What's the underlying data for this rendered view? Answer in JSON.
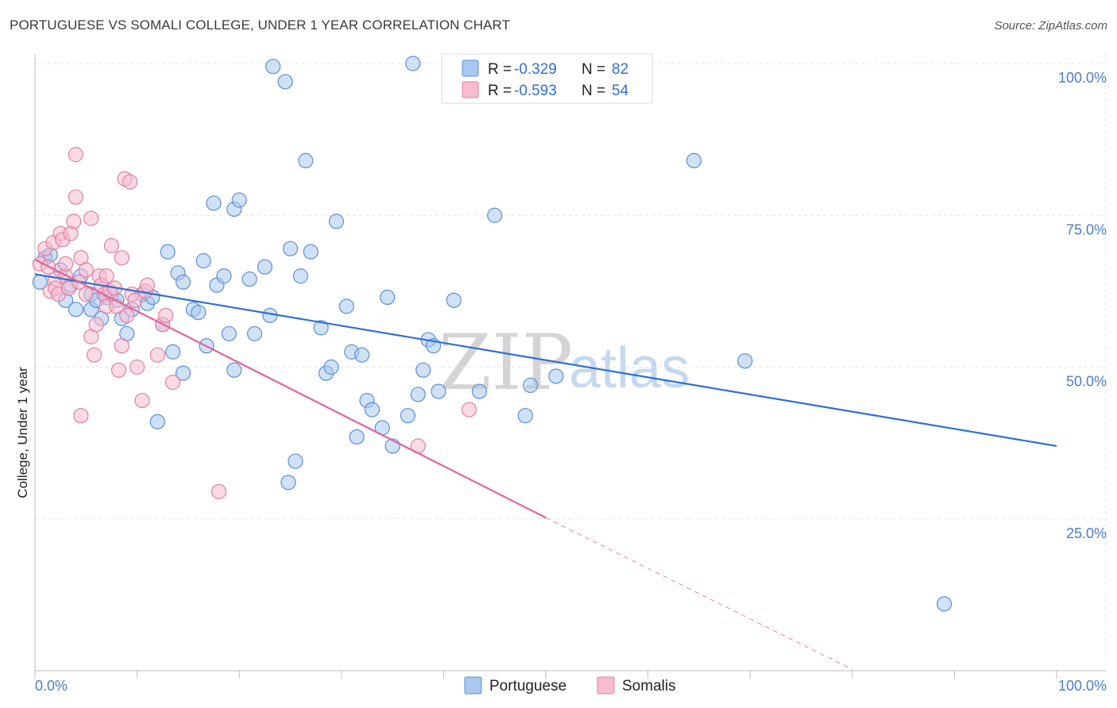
{
  "header": {
    "title": "PORTUGUESE VS SOMALI COLLEGE, UNDER 1 YEAR CORRELATION CHART",
    "source": "Source: ZipAtlas.com"
  },
  "watermark": {
    "zip": "ZIP",
    "atlas": "atlas"
  },
  "legend_stats": [
    {
      "r_label": "R =",
      "r_value": "-0.329",
      "n_label": "N =",
      "n_value": "82",
      "color": "#a9c8ef",
      "stroke": "#5b8fd6"
    },
    {
      "r_label": "R =",
      "r_value": "-0.593",
      "n_label": "N =",
      "n_value": "54",
      "color": "#f6bcd0",
      "stroke": "#e07fa0"
    }
  ],
  "chart_data": {
    "type": "scatter",
    "title": "PORTUGUESE VS SOMALI COLLEGE, UNDER 1 YEAR CORRELATION CHART",
    "xlabel": "",
    "ylabel": "College, Under 1 year",
    "xlim": [
      0,
      100
    ],
    "ylim": [
      0,
      100
    ],
    "x_tick_labels": [
      "0.0%",
      "100.0%"
    ],
    "y_ticks": [
      25,
      50,
      75,
      100
    ],
    "y_tick_labels": [
      "25.0%",
      "50.0%",
      "75.0%",
      "100.0%"
    ],
    "grid": true,
    "legend": [
      "Portuguese",
      "Somalis"
    ],
    "series": [
      {
        "name": "Portuguese",
        "color": "#a9c8ef",
        "stroke": "#5b8fd6",
        "line_color": "#2f6fd0",
        "trend": {
          "x0": 0,
          "y0": 65.3,
          "x1": 100,
          "y1": 37.0
        },
        "points": [
          [
            0.5,
            64.0
          ],
          [
            1.0,
            68.0
          ],
          [
            1.5,
            68.5
          ],
          [
            2.5,
            66.0
          ],
          [
            3.0,
            61.0
          ],
          [
            3.5,
            63.5
          ],
          [
            4.0,
            59.5
          ],
          [
            4.5,
            65.0
          ],
          [
            5.5,
            59.5
          ],
          [
            5.5,
            62.0
          ],
          [
            6.0,
            61.0
          ],
          [
            6.5,
            58.0
          ],
          [
            7.0,
            61.5
          ],
          [
            7.5,
            62.0
          ],
          [
            8.0,
            61.0
          ],
          [
            8.5,
            58.0
          ],
          [
            9.0,
            55.5
          ],
          [
            9.5,
            59.5
          ],
          [
            10.5,
            62.0
          ],
          [
            11.0,
            60.5
          ],
          [
            11.5,
            61.5
          ],
          [
            12.0,
            41.0
          ],
          [
            12.5,
            57.0
          ],
          [
            13.0,
            69.0
          ],
          [
            13.5,
            52.5
          ],
          [
            14.0,
            65.5
          ],
          [
            14.5,
            64.0
          ],
          [
            14.5,
            49.0
          ],
          [
            15.5,
            59.5
          ],
          [
            16.0,
            59.0
          ],
          [
            16.5,
            67.5
          ],
          [
            16.8,
            53.5
          ],
          [
            17.5,
            77.0
          ],
          [
            17.8,
            63.5
          ],
          [
            18.5,
            65.0
          ],
          [
            19.0,
            55.5
          ],
          [
            19.5,
            49.5
          ],
          [
            19.5,
            76.0
          ],
          [
            20.0,
            77.5
          ],
          [
            21.0,
            64.5
          ],
          [
            21.5,
            55.5
          ],
          [
            22.5,
            66.5
          ],
          [
            23.0,
            58.5
          ],
          [
            23.3,
            99.5
          ],
          [
            24.5,
            97.0
          ],
          [
            24.8,
            31.0
          ],
          [
            25.0,
            69.5
          ],
          [
            25.5,
            34.5
          ],
          [
            26.0,
            65.0
          ],
          [
            26.5,
            84.0
          ],
          [
            27.0,
            69.0
          ],
          [
            28.0,
            56.5
          ],
          [
            28.5,
            49.0
          ],
          [
            29.0,
            50.0
          ],
          [
            29.5,
            74.0
          ],
          [
            30.5,
            60.0
          ],
          [
            31.0,
            52.5
          ],
          [
            31.5,
            38.5
          ],
          [
            32.0,
            52.0
          ],
          [
            32.5,
            44.5
          ],
          [
            33.0,
            43.0
          ],
          [
            34.0,
            40.0
          ],
          [
            34.5,
            61.5
          ],
          [
            35.0,
            37.0
          ],
          [
            36.5,
            42.0
          ],
          [
            37.0,
            100.0
          ],
          [
            37.5,
            45.5
          ],
          [
            38.0,
            49.5
          ],
          [
            38.5,
            54.5
          ],
          [
            39.0,
            53.5
          ],
          [
            39.5,
            46.0
          ],
          [
            41.0,
            61.0
          ],
          [
            43.5,
            46.0
          ],
          [
            45.0,
            75.0
          ],
          [
            48.0,
            42.0
          ],
          [
            48.5,
            47.0
          ],
          [
            51.0,
            48.5
          ],
          [
            64.5,
            84.0
          ],
          [
            69.5,
            51.0
          ],
          [
            89.0,
            11.0
          ]
        ]
      },
      {
        "name": "Somalis",
        "color": "#f6bcd0",
        "stroke": "#e07fa0",
        "line_color": "#e0659a",
        "trend": {
          "x0": 0,
          "y0": 67.7,
          "x1": 50,
          "y1": 25.2
        },
        "trend_dashed": {
          "x0": 50,
          "y0": 25.2,
          "x1": 80,
          "y1": 0.2
        },
        "points": [
          [
            0.5,
            67.0
          ],
          [
            1.0,
            69.5
          ],
          [
            1.3,
            66.5
          ],
          [
            1.5,
            62.5
          ],
          [
            1.8,
            70.5
          ],
          [
            2.0,
            64.5
          ],
          [
            2.0,
            63.0
          ],
          [
            2.3,
            62.0
          ],
          [
            2.5,
            72.0
          ],
          [
            2.7,
            71.0
          ],
          [
            3.0,
            65.0
          ],
          [
            3.0,
            67.0
          ],
          [
            3.3,
            63.0
          ],
          [
            3.5,
            72.0
          ],
          [
            3.8,
            74.0
          ],
          [
            4.0,
            85.0
          ],
          [
            4.0,
            78.0
          ],
          [
            4.3,
            64.0
          ],
          [
            4.5,
            68.0
          ],
          [
            4.5,
            42.0
          ],
          [
            5.0,
            66.0
          ],
          [
            5.0,
            62.0
          ],
          [
            5.5,
            74.5
          ],
          [
            5.5,
            55.0
          ],
          [
            5.8,
            52.0
          ],
          [
            6.0,
            57.0
          ],
          [
            6.3,
            65.0
          ],
          [
            6.5,
            63.5
          ],
          [
            6.8,
            62.0
          ],
          [
            7.0,
            65.0
          ],
          [
            7.0,
            60.0
          ],
          [
            7.3,
            62.5
          ],
          [
            7.5,
            70.0
          ],
          [
            7.8,
            63.0
          ],
          [
            8.0,
            60.0
          ],
          [
            8.2,
            49.5
          ],
          [
            8.5,
            68.0
          ],
          [
            8.5,
            53.5
          ],
          [
            8.8,
            81.0
          ],
          [
            9.0,
            58.5
          ],
          [
            9.3,
            80.5
          ],
          [
            9.5,
            62.0
          ],
          [
            9.8,
            61.0
          ],
          [
            10.0,
            50.0
          ],
          [
            10.5,
            44.5
          ],
          [
            10.8,
            62.5
          ],
          [
            11.0,
            63.5
          ],
          [
            12.0,
            52.0
          ],
          [
            12.5,
            57.0
          ],
          [
            12.8,
            58.5
          ],
          [
            13.5,
            47.5
          ],
          [
            18.0,
            29.5
          ],
          [
            37.5,
            37.0
          ],
          [
            42.5,
            43.0
          ]
        ]
      }
    ]
  }
}
